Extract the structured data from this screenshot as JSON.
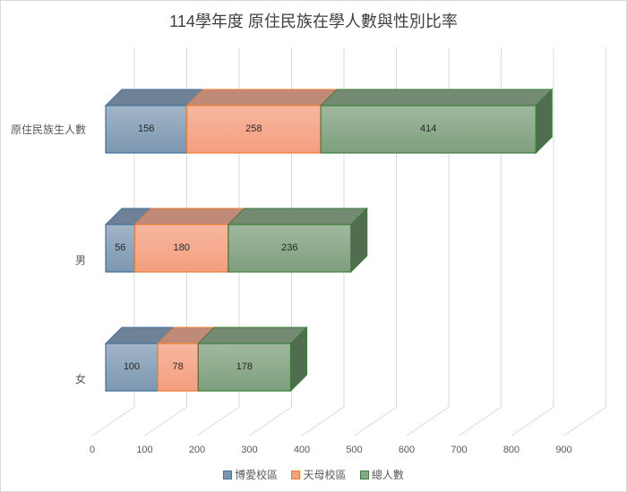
{
  "chart_data": {
    "type": "bar",
    "orientation": "horizontal",
    "stacked": true,
    "style": "3d",
    "title": "114學年度 原住民族在學人數與性別比率",
    "xlabel": "",
    "ylabel": "",
    "categories": [
      "原住民族生人數",
      "男",
      "女"
    ],
    "series": [
      {
        "name": "博愛校區",
        "values": [
          156,
          56,
          100
        ],
        "color": "#7b97b0"
      },
      {
        "name": "天母校區",
        "values": [
          258,
          180,
          78
        ],
        "color": "#f4a080"
      },
      {
        "name": "總人數",
        "values": [
          414,
          236,
          178
        ],
        "color": "#88a987"
      }
    ],
    "xlim": [
      0,
      900
    ],
    "xticks": [
      0,
      100,
      200,
      300,
      400,
      500,
      600,
      700,
      800,
      900
    ],
    "grid": true,
    "legend_position": "bottom"
  },
  "title": "114學年度 原住民族在學人數與性別比率",
  "categories": [
    "原住民族生人數",
    "男",
    "女"
  ],
  "xticks": [
    "0",
    "100",
    "200",
    "300",
    "400",
    "500",
    "600",
    "700",
    "800",
    "900"
  ],
  "legend": [
    "博愛校區",
    "天母校區",
    "總人數"
  ]
}
